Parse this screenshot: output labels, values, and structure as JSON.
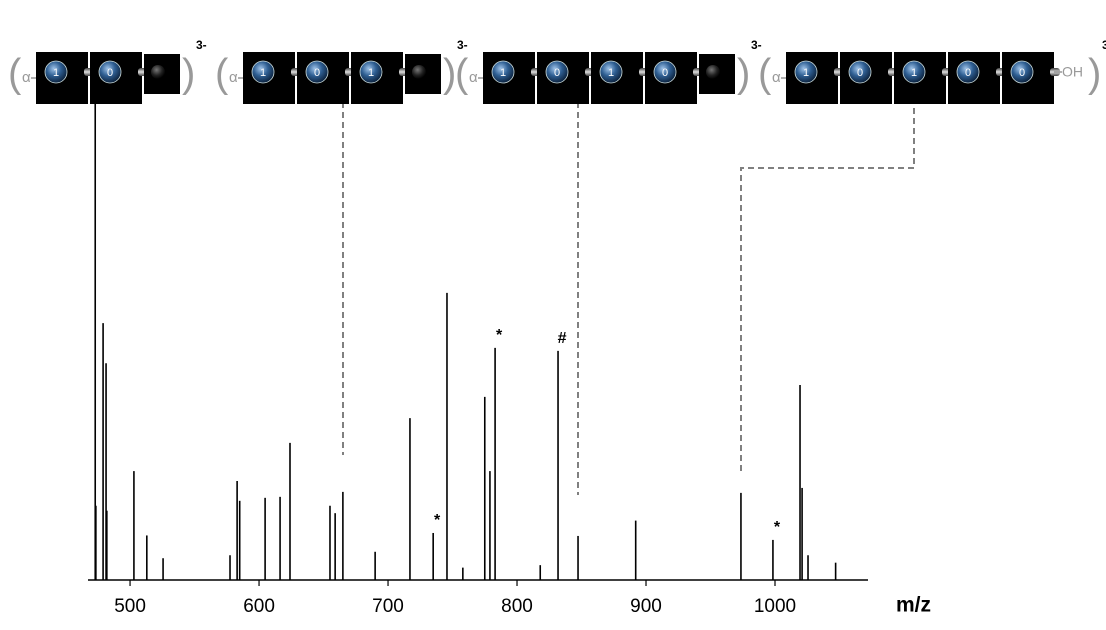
{
  "chart_data": {
    "type": "stem",
    "x_label": "m/z",
    "color": "#000000",
    "xlim": [
      467.4,
      1072.1
    ],
    "ylim": [
      0,
      100
    ],
    "xticks": [
      500,
      600,
      700,
      800,
      900,
      1000
    ],
    "x": [
      473,
      473.5,
      479.1,
      481.4,
      482,
      503,
      513,
      525.6,
      577.5,
      583,
      585,
      604.7,
      616.3,
      624,
      655,
      659,
      665,
      690,
      717,
      735,
      745.7,
      758,
      775,
      779,
      783,
      818,
      831.8,
      847.3,
      892,
      973.6,
      998.4,
      1019.4,
      1021,
      1025.6,
      1047
    ],
    "values": [
      100,
      15,
      51.9,
      43.8,
      14,
      22,
      9,
      4.4,
      5,
      20,
      16,
      16.6,
      16.8,
      27.7,
      15,
      13.5,
      17.8,
      5.7,
      32.7,
      9.5,
      58,
      2.5,
      37,
      22,
      46.9,
      3,
      46.3,
      8.9,
      12,
      17.6,
      8.1,
      39.4,
      18.6,
      5,
      3.5
    ],
    "annotations": [
      {
        "text": "*",
        "x": 735
      },
      {
        "text": "*",
        "x": 783
      },
      {
        "text": "#",
        "x": 831.8
      },
      {
        "text": "*",
        "x": 998.4
      }
    ],
    "structures": [
      {
        "prefix": "α",
        "units": [
          "1",
          "0"
        ],
        "charge": "3-"
      },
      {
        "prefix": "α",
        "units": [
          "1",
          "0",
          "1"
        ],
        "charge": "3-"
      },
      {
        "prefix": "α",
        "units": [
          "1",
          "0",
          "1",
          "0"
        ],
        "charge": "3-"
      },
      {
        "prefix": "α",
        "units": [
          "1",
          "0",
          "1",
          "0",
          "0"
        ],
        "suffix": "OH",
        "charge": "3-"
      }
    ]
  }
}
